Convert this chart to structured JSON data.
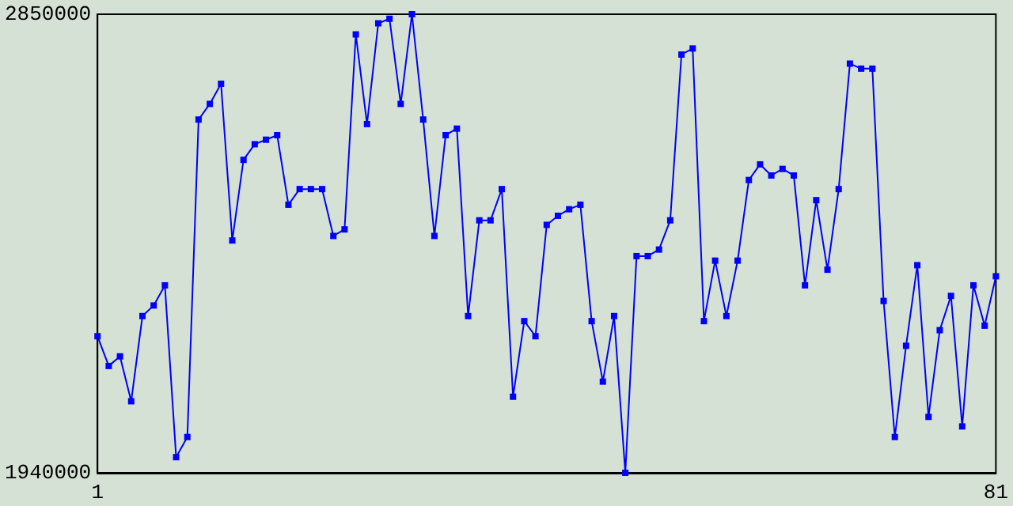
{
  "chart_data": {
    "type": "line",
    "x": [
      1,
      2,
      3,
      4,
      5,
      6,
      7,
      8,
      9,
      10,
      11,
      12,
      13,
      14,
      15,
      16,
      17,
      18,
      19,
      20,
      21,
      22,
      23,
      24,
      25,
      26,
      27,
      28,
      29,
      30,
      31,
      32,
      33,
      34,
      35,
      36,
      37,
      38,
      39,
      40,
      41,
      42,
      43,
      44,
      45,
      46,
      47,
      48,
      49,
      50,
      51,
      52,
      53,
      54,
      55,
      56,
      57,
      58,
      59,
      60,
      61,
      62,
      63,
      64,
      65,
      66,
      67,
      68,
      69,
      70,
      71,
      72,
      73,
      74,
      75,
      76,
      77,
      78,
      79,
      80,
      81
    ],
    "series": [
      {
        "color": "#0000ff",
        "values": [
          2211000,
          2152000,
          2171000,
          2082000,
          2251000,
          2272000,
          2312000,
          1971000,
          2011000,
          2641000,
          2672000,
          2712000,
          2401000,
          2561000,
          2592000,
          2601000,
          2610000,
          2472000,
          2503000,
          2503000,
          2503000,
          2410000,
          2423000,
          2810000,
          2632000,
          2832000,
          2841000,
          2672000,
          2850000,
          2641000,
          2410000,
          2610000,
          2623000,
          2251000,
          2441000,
          2441000,
          2503000,
          2091000,
          2241000,
          2211000,
          2432000,
          2450000,
          2463000,
          2472000,
          2241000,
          2121000,
          2251000,
          1940000,
          2370000,
          2370000,
          2383000,
          2441000,
          2770000,
          2782000,
          2241000,
          2361000,
          2251000,
          2361000,
          2521000,
          2552000,
          2530000,
          2543000,
          2530000,
          2312000,
          2481000,
          2343000,
          2503000,
          2752000,
          2742000,
          2742000,
          2281000,
          2011000,
          2192000,
          2352000,
          2051000,
          2223000,
          2291000,
          2032000,
          2312000,
          2232000,
          2330000
        ]
      }
    ],
    "xlim": [
      1,
      81
    ],
    "xticks": [
      1,
      81
    ],
    "ylim": [
      1940000,
      2850000
    ],
    "yticks": [
      1940000,
      2850000
    ],
    "grid": false,
    "marker": "square",
    "line_style": "solid"
  }
}
